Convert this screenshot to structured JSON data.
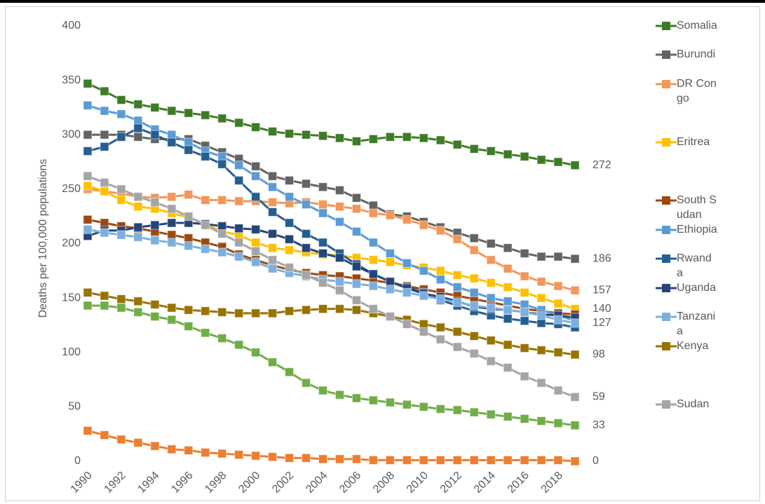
{
  "chart_data": {
    "type": "line",
    "y_label": "Deaths per 100,000 populations",
    "x": [
      1990,
      1991,
      1992,
      1993,
      1994,
      1995,
      1996,
      1997,
      1998,
      1999,
      2000,
      2001,
      2002,
      2003,
      2004,
      2005,
      2006,
      2007,
      2008,
      2009,
      2010,
      2011,
      2012,
      2013,
      2014,
      2015,
      2016,
      2017,
      2018,
      2019
    ],
    "xlim": [
      1990,
      2019
    ],
    "xticks": [
      1990,
      1992,
      1994,
      1996,
      1998,
      2000,
      2002,
      2004,
      2006,
      2008,
      2010,
      2012,
      2014,
      2016,
      2018
    ],
    "ylim": [
      0,
      400
    ],
    "yticks": [
      0,
      50,
      100,
      150,
      200,
      250,
      300,
      350,
      400
    ],
    "grid": false,
    "legend": "right",
    "series": [
      {
        "name": "Somalia",
        "color": "#3e7b27",
        "end_label": true,
        "values": [
          347,
          340,
          332,
          328,
          325,
          322,
          320,
          318,
          315,
          311,
          307,
          303,
          301,
          300,
          299,
          297,
          294,
          296,
          298,
          298,
          297,
          295,
          291,
          287,
          285,
          282,
          280,
          277,
          275,
          272
        ]
      },
      {
        "name": "Burundi",
        "color": "#636363",
        "end_label": true,
        "values": [
          300,
          300,
          300,
          298,
          296,
          296,
          296,
          290,
          284,
          278,
          271,
          262,
          258,
          255,
          252,
          249,
          242,
          235,
          227,
          225,
          220,
          215,
          210,
          205,
          200,
          196,
          191,
          188,
          188,
          186
        ]
      },
      {
        "name": "DR Congo",
        "color": "#f1975a",
        "end_label": true,
        "values": [
          250,
          248,
          246,
          243,
          242,
          243,
          245,
          240,
          240,
          239,
          239,
          238,
          237,
          238,
          236,
          234,
          232,
          228,
          226,
          222,
          217,
          212,
          204,
          194,
          185,
          177,
          170,
          165,
          161,
          157
        ]
      },
      {
        "name": "Eritrea",
        "color": "#ffc000",
        "end_label": true,
        "values": [
          253,
          248,
          240,
          234,
          232,
          228,
          224,
          218,
          211,
          208,
          201,
          196,
          194,
          192,
          190,
          189,
          187,
          185,
          183,
          180,
          178,
          175,
          171,
          168,
          164,
          160,
          155,
          150,
          145,
          140
        ]
      },
      {
        "name": "South Sudan",
        "color": "#9e480e",
        "end_label": false,
        "values": [
          222,
          219,
          216,
          214,
          211,
          208,
          205,
          201,
          197,
          190,
          185,
          180,
          176,
          173,
          171,
          170,
          168,
          166,
          164,
          161,
          158,
          155,
          152,
          149,
          146,
          143,
          140,
          138,
          136,
          135
        ]
      },
      {
        "name": "Ethiopia",
        "color": "#5b9bd5",
        "end_label": false,
        "values": [
          327,
          322,
          319,
          313,
          305,
          300,
          293,
          285,
          280,
          272,
          262,
          252,
          243,
          236,
          228,
          220,
          211,
          201,
          191,
          182,
          175,
          167,
          160,
          155,
          150,
          147,
          144,
          139,
          134,
          129
        ]
      },
      {
        "name": "Rwanda",
        "color": "#255e91",
        "end_label": false,
        "values": [
          285,
          289,
          298,
          306,
          300,
          293,
          286,
          280,
          273,
          258,
          243,
          229,
          219,
          209,
          201,
          191,
          181,
          172,
          165,
          160,
          155,
          148,
          143,
          138,
          134,
          131,
          129,
          127,
          126,
          123
        ]
      },
      {
        "name": "Uganda",
        "color": "#264478",
        "end_label": false,
        "values": [
          207,
          212,
          212,
          215,
          217,
          219,
          219,
          218,
          216,
          214,
          213,
          209,
          204,
          196,
          191,
          187,
          179,
          172,
          165,
          159,
          154,
          151,
          147,
          142,
          140,
          139,
          137,
          135,
          134,
          132
        ]
      },
      {
        "name": "Tanzania",
        "color": "#7cafdd",
        "end_label": true,
        "values": [
          213,
          210,
          208,
          206,
          203,
          201,
          198,
          195,
          192,
          188,
          183,
          177,
          173,
          170,
          167,
          165,
          163,
          161,
          158,
          155,
          152,
          149,
          146,
          143,
          141,
          139,
          137,
          134,
          130,
          127
        ]
      },
      {
        "name": "Kenya",
        "color": "#997300",
        "end_label": true,
        "values": [
          155,
          152,
          149,
          147,
          144,
          141,
          139,
          138,
          137,
          136,
          136,
          136,
          138,
          139,
          140,
          140,
          139,
          136,
          133,
          130,
          126,
          123,
          119,
          115,
          111,
          107,
          104,
          102,
          100,
          98
        ]
      },
      {
        "name": "Sudan",
        "color": "#a5a5a5",
        "end_label": true,
        "values": [
          262,
          256,
          250,
          243,
          238,
          232,
          225,
          217,
          209,
          201,
          193,
          185,
          178,
          171,
          164,
          157,
          148,
          140,
          133,
          126,
          119,
          112,
          105,
          99,
          92,
          86,
          78,
          72,
          65,
          59
        ]
      },
      {
        "color": "#70ad47",
        "end_label": true,
        "values": [
          143,
          143,
          141,
          137,
          133,
          130,
          124,
          118,
          113,
          107,
          100,
          91,
          82,
          72,
          65,
          61,
          58,
          56,
          54,
          52,
          50,
          48,
          47,
          45,
          43,
          41,
          39,
          37,
          35,
          33
        ]
      },
      {
        "color": "#ed7d31",
        "end_label": true,
        "values": [
          28,
          24,
          20,
          17,
          14,
          11,
          10,
          8,
          7,
          6,
          5,
          4,
          3,
          3,
          2,
          2,
          2,
          1,
          1,
          1,
          1,
          1,
          1,
          1,
          1,
          1,
          1,
          1,
          1,
          0
        ]
      }
    ]
  }
}
